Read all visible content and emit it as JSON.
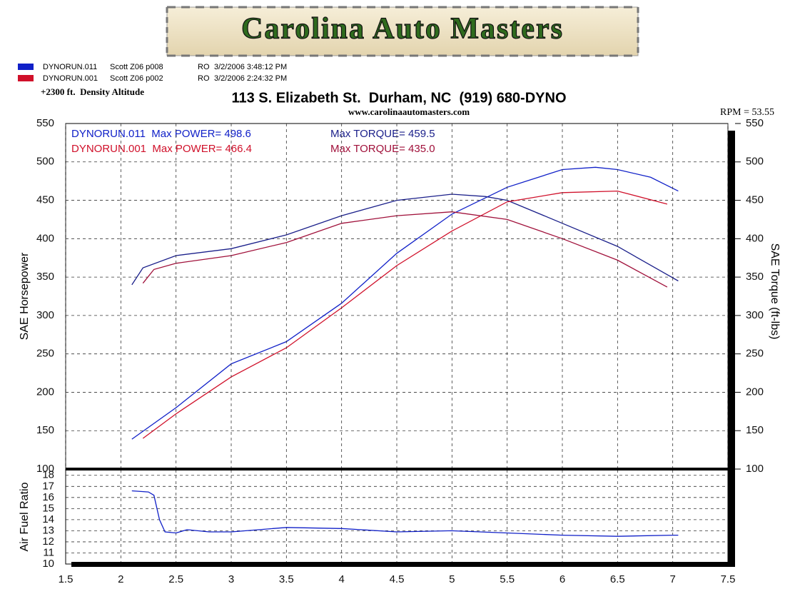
{
  "header": {
    "logo": "Carolina Auto Masters",
    "address": "113 S. Elizabeth St.  Durham, NC  (919) 680-DYNO",
    "website": "www.carolinaautomasters.com",
    "altitude": "+2300 ft.  Density Altitude",
    "rpm": "RPM = 53.55"
  },
  "legend": [
    {
      "name": "DYNORUN.011",
      "car": "Scott Z06 p008",
      "operator": "RO",
      "timestamp": "3/2/2006 3:48:12 PM",
      "color": "#1020c8"
    },
    {
      "name": "DYNORUN.001",
      "car": "Scott Z06 p002",
      "operator": "RO",
      "timestamp": "3/2/2006 2:24:32 PM",
      "color": "#d0102a"
    }
  ],
  "chart_data": [
    {
      "type": "line",
      "y_label": "SAE Horsepower",
      "y2_label": "SAE Torque (ft-lbs)",
      "annotations": [
        {
          "text": "DYNORUN.011  Max POWER= 498.6",
          "color": "#1020c8"
        },
        {
          "text": "DYNORUN.001  Max POWER= 466.4",
          "color": "#d0102a"
        },
        {
          "text": "Max TORQUE= 459.5",
          "color": "#1a1f8a"
        },
        {
          "text": "Max TORQUE= 435.0",
          "color": "#a0103a"
        }
      ],
      "xlim": [
        1.5,
        7.5
      ],
      "ylim": [
        100,
        550
      ],
      "y2lim": [
        100,
        550
      ],
      "grid": true,
      "yticks": [
        100,
        150,
        200,
        250,
        300,
        350,
        400,
        450,
        500,
        550
      ],
      "y2ticks": [
        100,
        150,
        200,
        250,
        300,
        350,
        400,
        450,
        500,
        550
      ],
      "series": [
        {
          "color": "#1020c8",
          "x": [
            2.1,
            2.5,
            3.0,
            3.5,
            4.0,
            4.5,
            5.0,
            5.5,
            6.0,
            6.3,
            6.5,
            6.8,
            7.05
          ],
          "values": [
            139,
            180,
            237,
            266,
            316,
            381,
            432,
            467,
            490,
            493,
            490,
            480,
            462
          ]
        },
        {
          "color": "#1a1f8a",
          "axis": "y2",
          "x": [
            2.1,
            2.2,
            2.5,
            3.0,
            3.5,
            4.0,
            4.5,
            5.0,
            5.3,
            5.5,
            6.0,
            6.5,
            7.05
          ],
          "values": [
            340,
            362,
            378,
            387,
            405,
            430,
            450,
            458,
            455,
            450,
            420,
            390,
            345
          ]
        },
        {
          "color": "#d0102a",
          "x": [
            2.2,
            2.5,
            3.0,
            3.5,
            4.0,
            4.5,
            5.0,
            5.5,
            6.0,
            6.5,
            6.95
          ],
          "values": [
            140,
            172,
            220,
            258,
            310,
            365,
            410,
            448,
            460,
            462,
            445
          ]
        },
        {
          "color": "#a0103a",
          "axis": "y2",
          "x": [
            2.2,
            2.3,
            2.5,
            3.0,
            3.5,
            4.0,
            4.5,
            5.0,
            5.5,
            6.0,
            6.5,
            6.95
          ],
          "values": [
            342,
            360,
            368,
            378,
            395,
            420,
            430,
            435,
            425,
            400,
            372,
            337
          ]
        }
      ]
    },
    {
      "type": "line",
      "y_label": "Air Fuel Ratio",
      "xlim": [
        1.5,
        7.5
      ],
      "ylim": [
        10,
        18.5
      ],
      "grid": true,
      "xticks": [
        1.5,
        2.0,
        2.5,
        3.0,
        3.5,
        4.0,
        4.5,
        5.0,
        5.5,
        6.0,
        6.5,
        7.0,
        7.5
      ],
      "yticks": [
        10,
        11,
        12,
        13,
        14,
        15,
        16,
        17,
        18
      ],
      "series": [
        {
          "color": "#1020c8",
          "x": [
            2.1,
            2.25,
            2.3,
            2.35,
            2.4,
            2.5,
            2.6,
            2.8,
            3.0,
            3.5,
            4.0,
            4.5,
            5.0,
            5.5,
            6.0,
            6.5,
            7.0,
            7.05
          ],
          "values": [
            16.6,
            16.5,
            16.2,
            14,
            12.9,
            12.8,
            13.1,
            12.9,
            12.9,
            13.3,
            13.2,
            12.9,
            13.0,
            12.8,
            12.6,
            12.5,
            12.6,
            12.6
          ]
        }
      ]
    }
  ]
}
